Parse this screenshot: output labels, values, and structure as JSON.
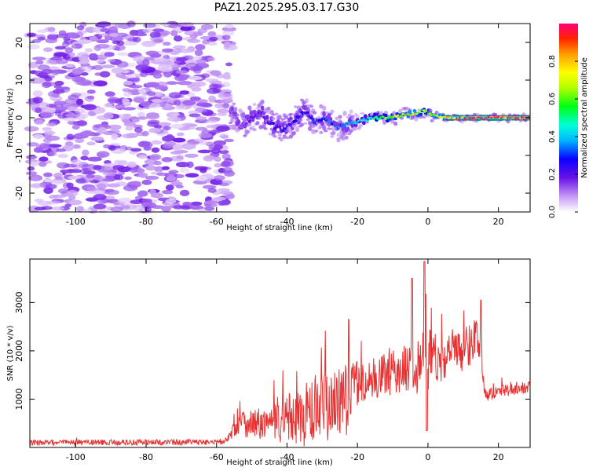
{
  "title": "PAZ1.2025.295.03.17.G30",
  "chart_data": [
    {
      "type": "heatmap",
      "xlabel": "Height of straight line (km)",
      "ylabel": "Frequency (Hz)",
      "xlim": [
        -113,
        29
      ],
      "ylim": [
        -25,
        25
      ],
      "xticks": [
        "-100",
        "-80",
        "-60",
        "-40",
        "-20",
        "0",
        "20"
      ],
      "xtick_values": [
        -100,
        -80,
        -60,
        -40,
        -20,
        0,
        20
      ],
      "yticks": [
        "-20",
        "-10",
        "0",
        "10",
        "20"
      ],
      "ytick_values": [
        -20,
        -10,
        0,
        10,
        20
      ],
      "colorbar": {
        "label": "Normalized spectral amplitude",
        "range": [
          0.0,
          1.0
        ],
        "ticks": [
          "0.0",
          "0.2",
          "0.4",
          "0.6",
          "0.8"
        ],
        "tick_values": [
          0.0,
          0.2,
          0.4,
          0.6,
          0.8
        ]
      },
      "noise_region": {
        "x_range": [
          -113,
          -56
        ],
        "freq_range": [
          -25,
          25
        ],
        "amplitude_range": [
          0.03,
          0.18
        ]
      },
      "signal_trace": {
        "description": "frequency of peak spectral amplitude vs height",
        "points": [
          {
            "x": -56,
            "freq": 2,
            "amp": 0.12
          },
          {
            "x": -53,
            "freq": -2,
            "amp": 0.15
          },
          {
            "x": -50,
            "freq": 0,
            "amp": 0.18
          },
          {
            "x": -47,
            "freq": 1,
            "amp": 0.2
          },
          {
            "x": -44,
            "freq": -2,
            "amp": 0.22
          },
          {
            "x": -41,
            "freq": -3,
            "amp": 0.24
          },
          {
            "x": -38,
            "freq": -1,
            "amp": 0.26
          },
          {
            "x": -35,
            "freq": 2,
            "amp": 0.28
          },
          {
            "x": -32,
            "freq": -1,
            "amp": 0.3
          },
          {
            "x": -29,
            "freq": 0,
            "amp": 0.32
          },
          {
            "x": -26,
            "freq": -3,
            "amp": 0.34
          },
          {
            "x": -23,
            "freq": -2,
            "amp": 0.33
          },
          {
            "x": -20,
            "freq": -1,
            "amp": 0.4
          },
          {
            "x": -16,
            "freq": 0,
            "amp": 0.55
          },
          {
            "x": -12,
            "freq": 0,
            "amp": 0.62
          },
          {
            "x": -8,
            "freq": 0.5,
            "amp": 0.7
          },
          {
            "x": -4,
            "freq": 1,
            "amp": 0.82
          },
          {
            "x": -1,
            "freq": 2,
            "amp": 0.6
          },
          {
            "x": 2,
            "freq": 0.5,
            "amp": 0.75
          },
          {
            "x": 6,
            "freq": 0,
            "amp": 0.85
          },
          {
            "x": 10,
            "freq": 0,
            "amp": 0.9
          },
          {
            "x": 14,
            "freq": 0,
            "amp": 0.95
          },
          {
            "x": 18,
            "freq": 0,
            "amp": 0.95
          },
          {
            "x": 22,
            "freq": 0,
            "amp": 0.92
          },
          {
            "x": 26,
            "freq": 0,
            "amp": 0.9
          },
          {
            "x": 29,
            "freq": 0,
            "amp": 0.9
          }
        ]
      }
    },
    {
      "type": "line",
      "xlabel": "Height of straight line (km)",
      "ylabel": "SNR (10 * v/v)",
      "xlim": [
        -113,
        29
      ],
      "ylim": [
        0,
        3900
      ],
      "xticks": [
        "-100",
        "-80",
        "-60",
        "-40",
        "-20",
        "0",
        "20"
      ],
      "xtick_values": [
        -100,
        -80,
        -60,
        -40,
        -20,
        0,
        20
      ],
      "yticks": [
        "1000",
        "2000",
        "3000"
      ],
      "ytick_values": [
        1000,
        2000,
        3000
      ],
      "series": [
        {
          "name": "SNR",
          "color": "#e83030",
          "envelope": [
            {
              "x": -113,
              "base": 100,
              "amp": 60
            },
            {
              "x": -58,
              "base": 110,
              "amp": 60
            },
            {
              "x": -56,
              "base": 250,
              "amp": 100
            },
            {
              "x": -54,
              "base": 550,
              "amp": 300
            },
            {
              "x": -50,
              "base": 500,
              "amp": 320
            },
            {
              "x": -46,
              "base": 480,
              "amp": 350
            },
            {
              "x": -42,
              "base": 520,
              "amp": 450
            },
            {
              "x": -38,
              "base": 600,
              "amp": 550
            },
            {
              "x": -34,
              "base": 680,
              "amp": 700
            },
            {
              "x": -30,
              "base": 780,
              "amp": 750
            },
            {
              "x": -26,
              "base": 900,
              "amp": 700
            },
            {
              "x": -23,
              "base": 1100,
              "amp": 900
            },
            {
              "x": -21,
              "base": 1300,
              "amp": 500
            },
            {
              "x": -18,
              "base": 1350,
              "amp": 400
            },
            {
              "x": -14,
              "base": 1450,
              "amp": 450
            },
            {
              "x": -10,
              "base": 1550,
              "amp": 450
            },
            {
              "x": -6,
              "base": 1650,
              "amp": 500
            },
            {
              "x": -3,
              "base": 1750,
              "amp": 650
            },
            {
              "x": -1,
              "base": 1650,
              "amp": 900
            },
            {
              "x": 1,
              "base": 1750,
              "amp": 800
            },
            {
              "x": 4,
              "base": 1850,
              "amp": 450
            },
            {
              "x": 8,
              "base": 1950,
              "amp": 450
            },
            {
              "x": 12,
              "base": 2150,
              "amp": 500
            },
            {
              "x": 15,
              "base": 2350,
              "amp": 450
            },
            {
              "x": 16,
              "base": 1100,
              "amp": 150
            },
            {
              "x": 20,
              "base": 1150,
              "amp": 130
            },
            {
              "x": 24,
              "base": 1200,
              "amp": 120
            },
            {
              "x": 29,
              "base": 1250,
              "amp": 120
            }
          ],
          "notable_points": [
            {
              "x": -22.5,
              "y": 2650
            },
            {
              "x": -4.5,
              "y": 3500
            },
            {
              "x": -1,
              "y": 3850
            },
            {
              "x": -0.3,
              "y": 350
            },
            {
              "x": 15,
              "y": 3050
            }
          ]
        }
      ]
    }
  ]
}
